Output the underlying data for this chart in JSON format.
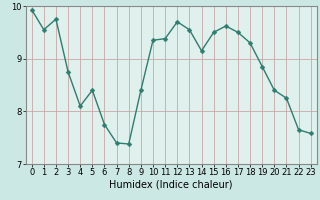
{
  "x": [
    0,
    1,
    2,
    3,
    4,
    5,
    6,
    7,
    8,
    9,
    10,
    11,
    12,
    13,
    14,
    15,
    16,
    17,
    18,
    19,
    20,
    21,
    22,
    23
  ],
  "y": [
    9.93,
    9.55,
    9.75,
    8.75,
    8.1,
    8.4,
    7.75,
    7.4,
    7.38,
    8.4,
    9.35,
    9.38,
    9.7,
    9.55,
    9.15,
    9.5,
    9.62,
    9.5,
    9.3,
    8.85,
    8.4,
    8.25,
    7.65,
    7.58
  ],
  "line_color": "#2e7d6e",
  "marker": "D",
  "marker_size": 2.5,
  "linewidth": 1.0,
  "bg_color": "#cce8e4",
  "plot_bg_color": "#dff0ed",
  "grid_color": "#c8a8a8",
  "xlabel": "Humidex (Indice chaleur)",
  "xlabel_fontsize": 7,
  "tick_fontsize": 6,
  "ylim": [
    7,
    10
  ],
  "xlim": [
    -0.5,
    23.5
  ],
  "yticks": [
    7,
    8,
    9,
    10
  ],
  "xticks": [
    0,
    1,
    2,
    3,
    4,
    5,
    6,
    7,
    8,
    9,
    10,
    11,
    12,
    13,
    14,
    15,
    16,
    17,
    18,
    19,
    20,
    21,
    22,
    23
  ],
  "spine_color": "#888888"
}
